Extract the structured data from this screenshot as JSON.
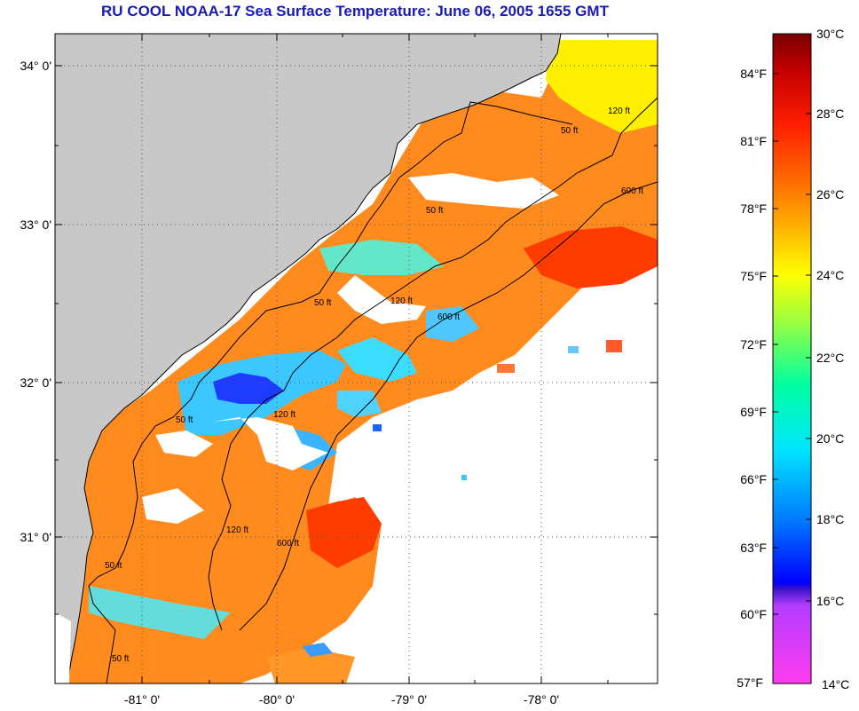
{
  "title": "RU COOL  NOAA-17  Sea Surface Temperature:  June 06, 2005 1655 GMT",
  "map": {
    "lat_labels": [
      "34° 0'",
      "33° 0'",
      "32° 0'",
      "31° 0'"
    ],
    "lon_labels": [
      "-81° 0'",
      "-80° 0'",
      "-79° 0'",
      "-78° 0'"
    ],
    "contour_labels": [
      "50 ft",
      "120 ft",
      "600 ft",
      "50 ft",
      "120 ft",
      "600 ft",
      "50 ft",
      "120 ft",
      "50 ft",
      "120 ft",
      "600 ft",
      "50 ft",
      "50 ft"
    ],
    "colors": {
      "land": "#c8c8c8",
      "cloud": "#ffffff",
      "grid": "#555555"
    }
  },
  "colorbar": {
    "fahrenheit_labels": [
      "84°F",
      "81°F",
      "78°F",
      "75°F",
      "72°F",
      "69°F",
      "66°F",
      "63°F",
      "60°F",
      "57°F"
    ],
    "celsius_labels": [
      "30°C",
      "28°C",
      "26°C",
      "24°C",
      "22°C",
      "20°C",
      "18°C",
      "16°C",
      "14°C"
    ]
  }
}
